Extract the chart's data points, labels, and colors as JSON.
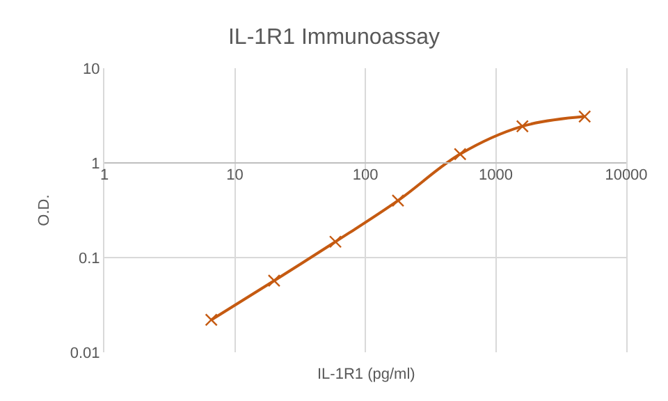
{
  "chart_data": {
    "type": "line",
    "title": "IL-1R1 Immunoassay",
    "xlabel": "IL-1R1 (pg/ml)",
    "ylabel": "O.D.",
    "x": [
      6.6,
      20,
      59,
      178,
      533,
      1600,
      4800
    ],
    "series": [
      {
        "color": "#c55a11",
        "values": [
          0.022,
          0.057,
          0.147,
          0.4,
          1.24,
          2.44,
          3.09
        ]
      }
    ],
    "log": "xy",
    "xlim": [
      1,
      10000
    ],
    "xticks": [
      1,
      10,
      100,
      1000,
      10000
    ],
    "ylim": [
      0.01,
      10
    ],
    "yticks": [
      {
        "value": 0.01,
        "label": "0.01"
      },
      {
        "value": 0.1,
        "label": "0.1"
      },
      1,
      10
    ],
    "grid": true,
    "marker": "cross",
    "line_style": "solid"
  }
}
